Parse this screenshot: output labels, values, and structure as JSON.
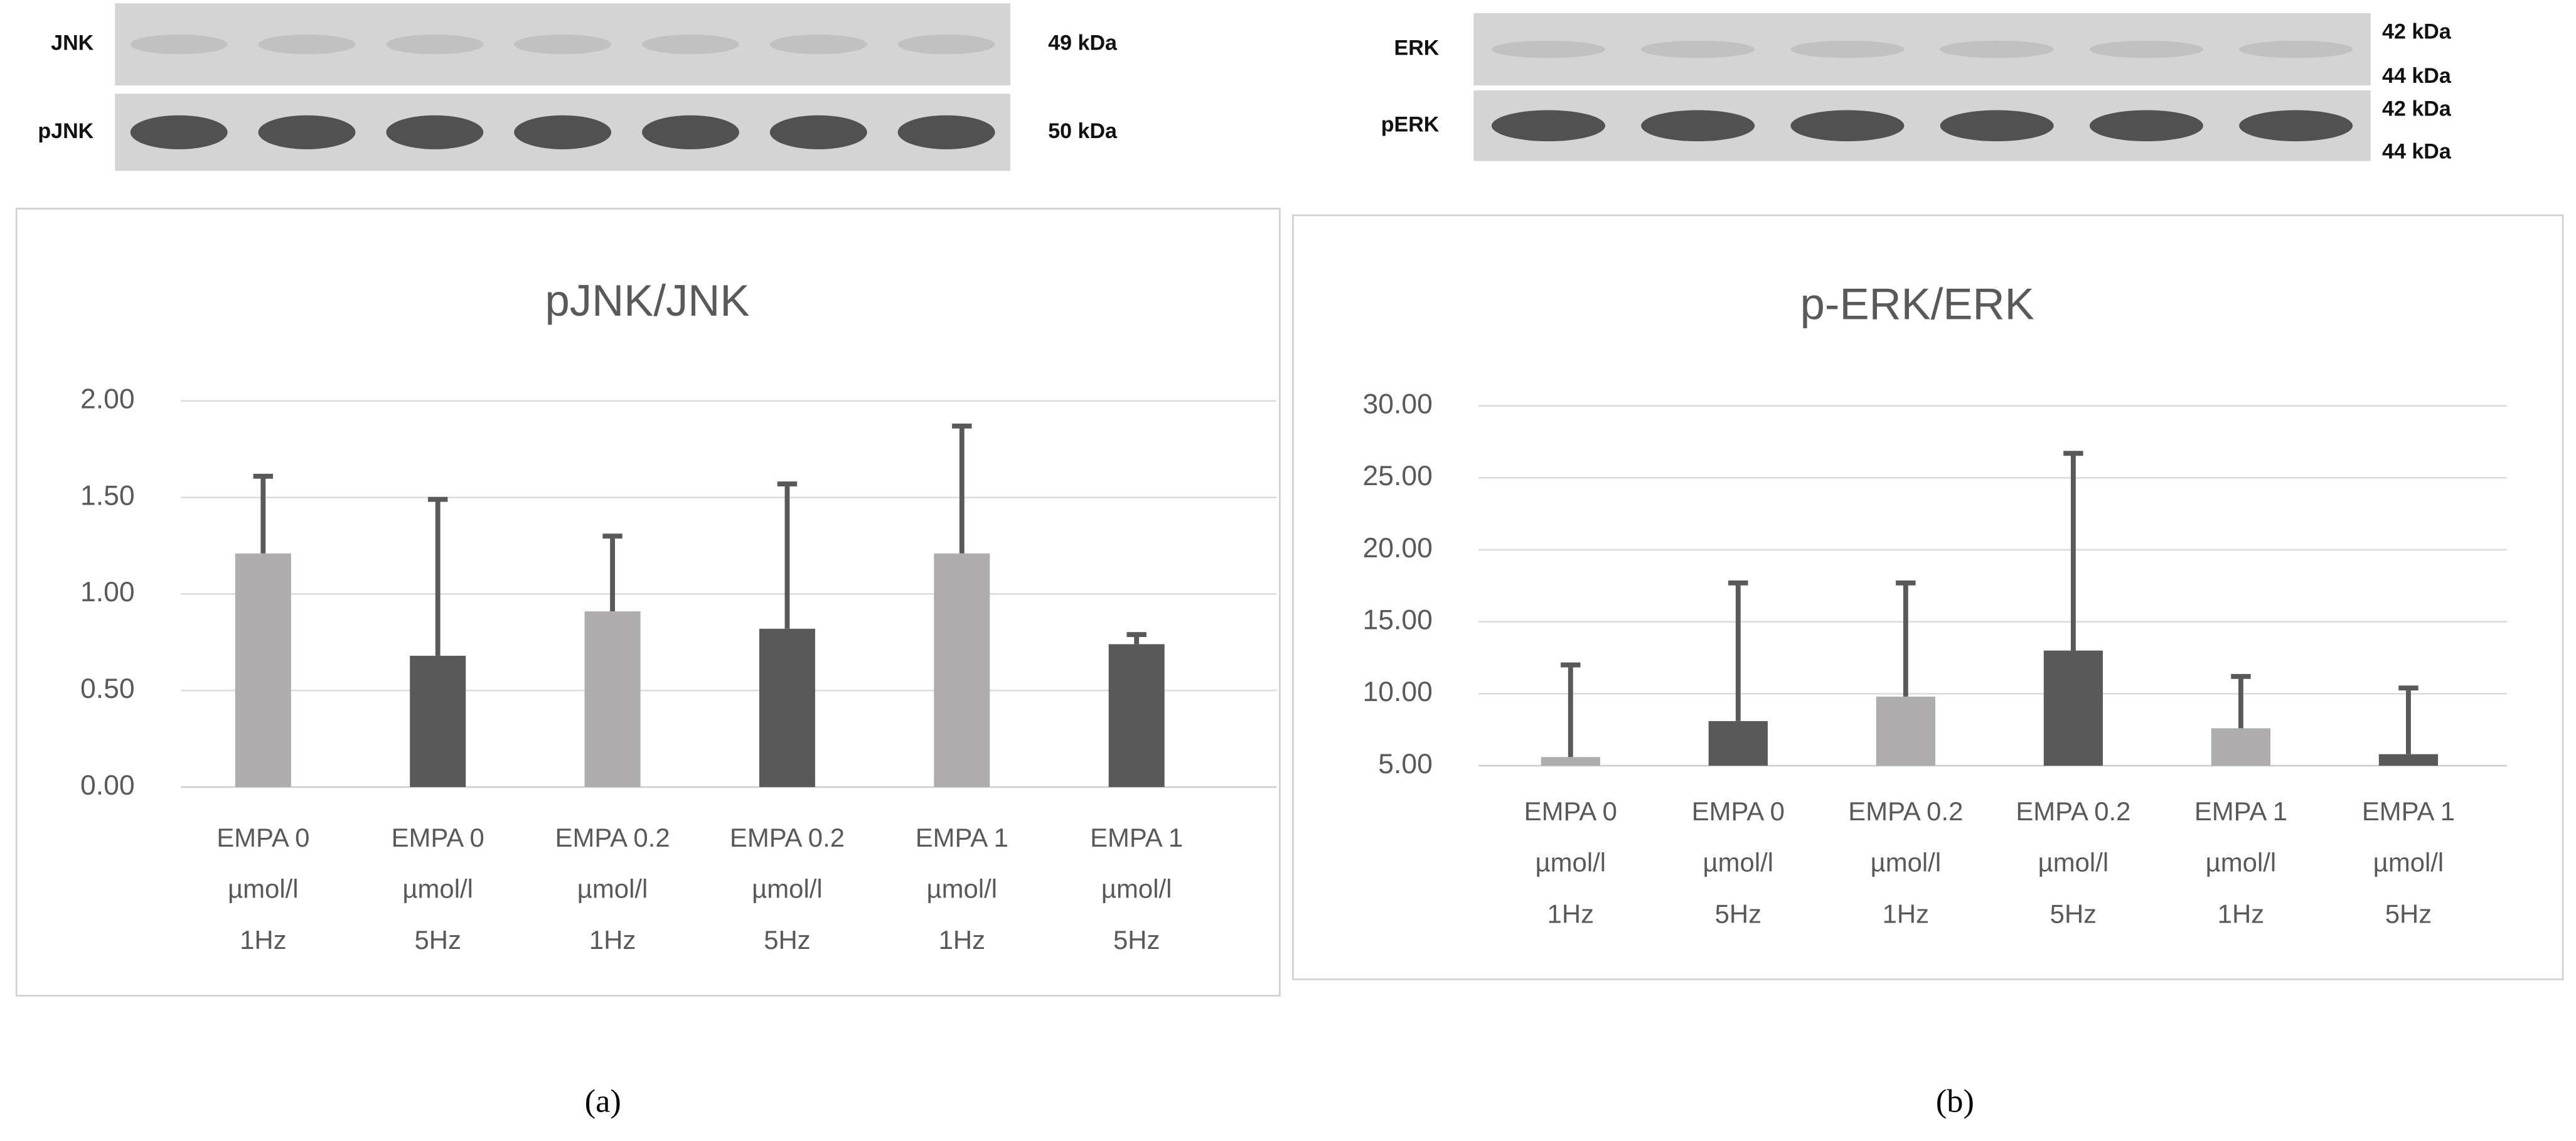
{
  "chart_data": [
    {
      "type": "bar",
      "title": "pJNK/JNK",
      "panel_label": "(a)",
      "blot": [
        {
          "label": "JNK",
          "markers": [
            "49 kDa"
          ]
        },
        {
          "label": "pJNK",
          "markers": [
            "50 kDa"
          ]
        }
      ],
      "categories": [
        "EMPA 0\nµmol/l\n1Hz",
        "EMPA 0\nµmol/l\n5Hz",
        "EMPA 0.2\nµmol/l\n1Hz",
        "EMPA 0.2\nµmol/l\n5Hz",
        "EMPA 1\nµmol/l\n1Hz",
        "EMPA 1\nµmol/l\n5Hz"
      ],
      "values": [
        1.21,
        0.68,
        0.91,
        0.82,
        1.21,
        0.74
      ],
      "errors": [
        0.4,
        0.81,
        0.39,
        0.75,
        0.66,
        0.05
      ],
      "colors": [
        "#aeacac",
        "#595959",
        "#aeacac",
        "#595959",
        "#aeacac",
        "#595959"
      ],
      "ylim": [
        0,
        2
      ],
      "yticks": [
        {
          "value": 0,
          "label": "0.00"
        },
        {
          "value": 0.5,
          "label": "0.50"
        },
        {
          "value": 1,
          "label": "1.00"
        },
        {
          "value": 1.5,
          "label": "1.50"
        },
        {
          "value": 2,
          "label": "2.00"
        }
      ],
      "grid": true
    },
    {
      "type": "bar",
      "title": "p-ERK/ERK",
      "panel_label": "(b)",
      "blot": [
        {
          "label": "ERK",
          "markers": [
            "42 kDa",
            "44 kDa"
          ]
        },
        {
          "label": "pERK",
          "markers": [
            "42 kDa",
            "44 kDa"
          ]
        }
      ],
      "categories": [
        "EMPA 0\nµmol/l\n1Hz",
        "EMPA 0\nµmol/l\n5Hz",
        "EMPA 0.2\nµmol/l\n1Hz",
        "EMPA 0.2\nµmol/l\n5Hz",
        "EMPA 1\nµmol/l\n1Hz",
        "EMPA 1\nµmol/l\n5Hz"
      ],
      "values": [
        5.6,
        8.1,
        9.8,
        13.0,
        7.6,
        5.8
      ],
      "errors": [
        6.4,
        9.6,
        7.9,
        13.7,
        3.6,
        4.6
      ],
      "colors": [
        "#aeacac",
        "#595959",
        "#aeacac",
        "#595959",
        "#aeacac",
        "#595959"
      ],
      "ylim": [
        5,
        30
      ],
      "yticks": [
        {
          "value": 5,
          "label": "5.00"
        },
        {
          "value": 10,
          "label": "10.00"
        },
        {
          "value": 15,
          "label": "15.00"
        },
        {
          "value": 20,
          "label": "20.00"
        },
        {
          "value": 25,
          "label": "25.00"
        },
        {
          "value": 30,
          "label": "30.00"
        }
      ],
      "grid": true
    }
  ]
}
